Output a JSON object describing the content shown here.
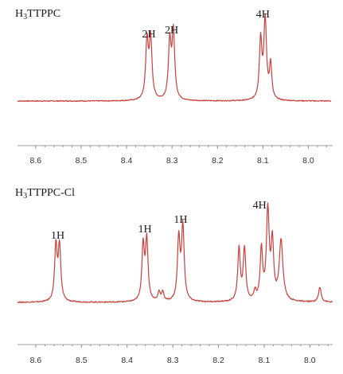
{
  "colors": {
    "trace": "#c8413c",
    "axis": "#a0a0a0",
    "text": "#1a1a1a"
  },
  "chart_data": [
    {
      "type": "line",
      "title_main": "H",
      "title_sub": "3",
      "title_rest": "TTPPC",
      "xlabel": "",
      "ylabel": "",
      "x_reversed": true,
      "xlim": [
        8.64,
        7.95
      ],
      "xticks": [
        "8.6",
        "8.5",
        "8.4",
        "8.3",
        "8.2",
        "8.1",
        "8.0"
      ],
      "baseline": 0.04,
      "peaks": [
        {
          "x": 8.355,
          "height": 0.74,
          "width": 0.0035
        },
        {
          "x": 8.347,
          "height": 0.76,
          "width": 0.0035
        },
        {
          "x": 8.305,
          "height": 0.72,
          "width": 0.0035
        },
        {
          "x": 8.297,
          "height": 0.85,
          "width": 0.0035
        },
        {
          "x": 8.105,
          "height": 0.75,
          "width": 0.0033
        },
        {
          "x": 8.095,
          "height": 1.0,
          "width": 0.0036
        },
        {
          "x": 8.083,
          "height": 0.44,
          "width": 0.003
        }
      ],
      "annotations": [
        {
          "text": "2H",
          "x": 8.351
        },
        {
          "text": "2H",
          "x": 8.301
        },
        {
          "text": "4H",
          "x": 8.1
        }
      ]
    },
    {
      "type": "line",
      "title_main": "H",
      "title_sub": "3",
      "title_rest": "TTPPC-Cl",
      "xlabel": "",
      "ylabel": "",
      "x_reversed": true,
      "xlim": [
        8.64,
        7.95
      ],
      "xticks": [
        "8.6",
        "8.5",
        "8.4",
        "8.3",
        "8.2",
        "8.1",
        "8.0"
      ],
      "baseline": 0.03,
      "peaks": [
        {
          "x": 8.556,
          "height": 0.6,
          "width": 0.0033
        },
        {
          "x": 8.548,
          "height": 0.6,
          "width": 0.0033
        },
        {
          "x": 8.365,
          "height": 0.6,
          "width": 0.0033
        },
        {
          "x": 8.357,
          "height": 0.66,
          "width": 0.0033
        },
        {
          "x": 8.33,
          "height": 0.1,
          "width": 0.003
        },
        {
          "x": 8.322,
          "height": 0.1,
          "width": 0.003
        },
        {
          "x": 8.287,
          "height": 0.68,
          "width": 0.0033
        },
        {
          "x": 8.278,
          "height": 0.81,
          "width": 0.0035
        },
        {
          "x": 8.155,
          "height": 0.57,
          "width": 0.0033
        },
        {
          "x": 8.143,
          "height": 0.57,
          "width": 0.0033
        },
        {
          "x": 8.12,
          "height": 0.1,
          "width": 0.003
        },
        {
          "x": 8.106,
          "height": 0.56,
          "width": 0.0032
        },
        {
          "x": 8.092,
          "height": 0.98,
          "width": 0.0036
        },
        {
          "x": 8.082,
          "height": 0.62,
          "width": 0.0033
        },
        {
          "x": 8.063,
          "height": 0.66,
          "width": 0.0048
        },
        {
          "x": 7.978,
          "height": 0.16,
          "width": 0.0035
        }
      ],
      "annotations": [
        {
          "text": "1H",
          "x": 8.552
        },
        {
          "text": "1H",
          "x": 8.361
        },
        {
          "text": "1H",
          "x": 8.283
        },
        {
          "text": "4H",
          "x": 8.11
        }
      ]
    }
  ]
}
